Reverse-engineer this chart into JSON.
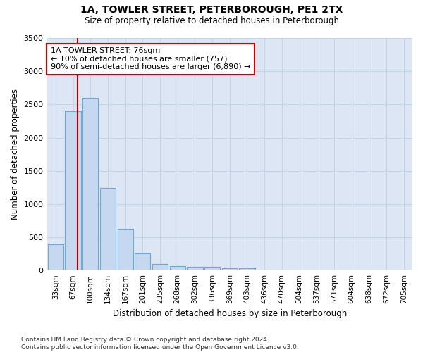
{
  "title_line1": "1A, TOWLER STREET, PETERBOROUGH, PE1 2TX",
  "title_line2": "Size of property relative to detached houses in Peterborough",
  "xlabel": "Distribution of detached houses by size in Peterborough",
  "ylabel": "Number of detached properties",
  "categories": [
    "33sqm",
    "67sqm",
    "100sqm",
    "134sqm",
    "167sqm",
    "201sqm",
    "235sqm",
    "268sqm",
    "302sqm",
    "336sqm",
    "369sqm",
    "403sqm",
    "436sqm",
    "470sqm",
    "504sqm",
    "537sqm",
    "571sqm",
    "604sqm",
    "638sqm",
    "672sqm",
    "705sqm"
  ],
  "values": [
    390,
    2400,
    2600,
    1240,
    630,
    255,
    100,
    65,
    60,
    55,
    35,
    30,
    0,
    0,
    0,
    0,
    0,
    0,
    0,
    0,
    0
  ],
  "bar_color": "#c5d8f0",
  "bar_edge_color": "#6aaad4",
  "vline_color": "#aa0000",
  "vline_x": 1.28,
  "annotation_text": "1A TOWLER STREET: 76sqm\n← 10% of detached houses are smaller (757)\n90% of semi-detached houses are larger (6,890) →",
  "annotation_box_color": "#cc0000",
  "ylim": [
    0,
    3500
  ],
  "yticks": [
    0,
    500,
    1000,
    1500,
    2000,
    2500,
    3000,
    3500
  ],
  "grid_color": "#c8d4e8",
  "bg_color": "#dce6f5",
  "fig_bg_color": "#ffffff",
  "footnote": "Contains HM Land Registry data © Crown copyright and database right 2024.\nContains public sector information licensed under the Open Government Licence v3.0."
}
